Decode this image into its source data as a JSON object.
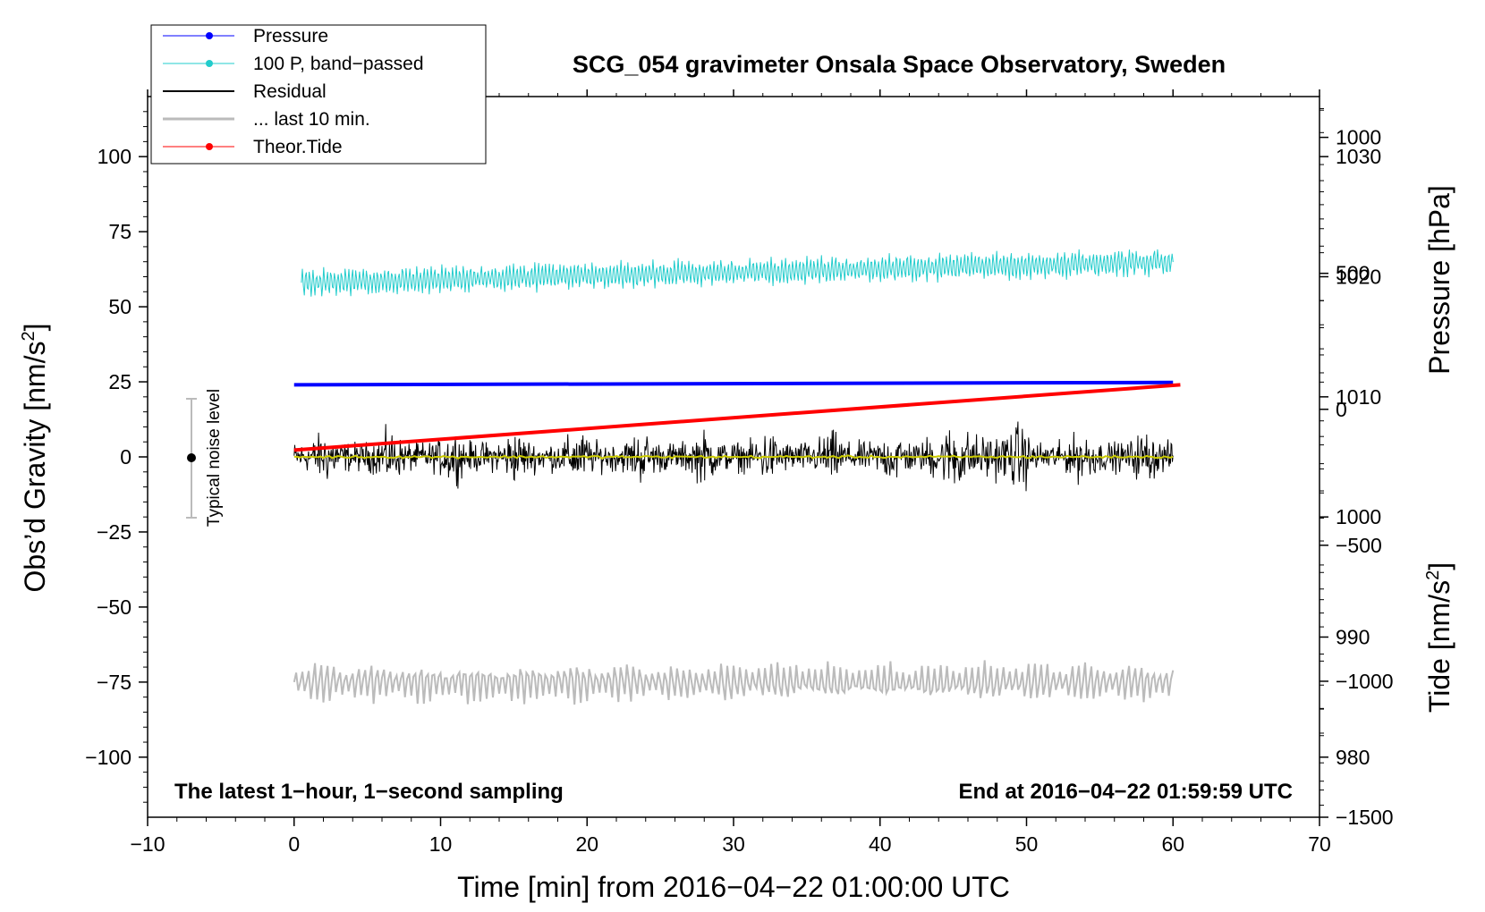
{
  "chart_data": {
    "type": "line",
    "title": "SCG_054 gravimeter Onsala Space Observatory, Sweden",
    "xlabel": "Time [min] from 2016−04−22 01:00:00 UTC",
    "ylabel_left_main": "Obs’d Gravity [nm/s",
    "ylabel_left_sup": "2",
    "ylabel_left_end": "]",
    "ylabel_right_upper": "Pressure [hPa]",
    "ylabel_right_lower_main": "Tide [nm/s",
    "ylabel_right_lower_sup": "2",
    "ylabel_right_lower_end": "]",
    "xlim": [
      -10,
      70
    ],
    "ylim_left": [
      -120,
      120
    ],
    "pressure_axis_range": [
      975,
      1035
    ],
    "tide_axis_range": [
      -1500,
      1150
    ],
    "x_ticks": [
      -10,
      0,
      10,
      20,
      30,
      40,
      50,
      60,
      70
    ],
    "x_tick_labels": [
      "−10",
      "0",
      "10",
      "20",
      "30",
      "40",
      "50",
      "60",
      "70"
    ],
    "y_left_ticks": [
      100,
      75,
      50,
      25,
      0,
      -25,
      -50,
      -75,
      -100
    ],
    "y_left_tick_labels": [
      "100",
      "75",
      "50",
      "25",
      "0",
      "−25",
      "−50",
      "−75",
      "−100"
    ],
    "y_pressure_ticks": [
      1030,
      1020,
      1010,
      1000,
      990,
      980
    ],
    "y_pressure_tick_labels": [
      "1030",
      "1020",
      "1010",
      "1000",
      "990",
      "980"
    ],
    "y_tide_ticks": [
      1000,
      500,
      0,
      -500,
      -1000,
      -1500
    ],
    "y_tide_tick_labels": [
      "1000",
      "500",
      "0",
      "−500",
      "−1000",
      "−1500"
    ],
    "legend_position": "top-left",
    "legend": [
      {
        "label": "Pressure",
        "color": "#0000ff",
        "marker": true,
        "width": 1
      },
      {
        "label": "100 P, band−passed",
        "color": "#22cccc",
        "marker": true,
        "width": 1
      },
      {
        "label": "Residual",
        "color": "#000000",
        "marker": false,
        "width": 2
      },
      {
        "label": "... last 10 min.",
        "color": "#bbbbbb",
        "marker": false,
        "width": 3
      },
      {
        "label": "Theor.Tide",
        "color": "#ff0000",
        "marker": true,
        "width": 1
      }
    ],
    "series": [
      {
        "name": "Pressure",
        "color": "#0000ff",
        "offset_gravity_units": 75.5,
        "x_range": [
          0,
          60
        ],
        "value_hpa_start": 1011.0,
        "value_hpa_end": 1011.2
      },
      {
        "name": "100 P, band-passed",
        "color": "#22cccc",
        "center_start": 58,
        "center_end": 65,
        "amplitude": 4,
        "x_range": [
          0.5,
          60
        ]
      },
      {
        "name": "Residual",
        "color": "#000000",
        "center": 0,
        "amplitude": 7,
        "x_range": [
          0,
          60
        ]
      },
      {
        "name": "Residual smoothed",
        "color": "#cccc00",
        "center": 0,
        "amplitude": 0.6,
        "x_range": [
          0,
          60
        ]
      },
      {
        "name": "... last 10 min.",
        "color": "#bbbbbb",
        "center": -75,
        "amplitude": 6,
        "x_range": [
          0,
          60
        ]
      },
      {
        "name": "Theor.Tide",
        "color": "#ff0000",
        "value_nms2_start": -150,
        "value_nms2_end": 90,
        "x_range": [
          0,
          60.5
        ]
      }
    ],
    "noise_indicator": {
      "label": "Typical noise level",
      "x": -7,
      "center": 0,
      "half_range": 20
    },
    "annotation_left": "The latest 1−hour, 1−second sampling",
    "annotation_right": "End at 2016−04−22 01:59:59 UTC"
  }
}
